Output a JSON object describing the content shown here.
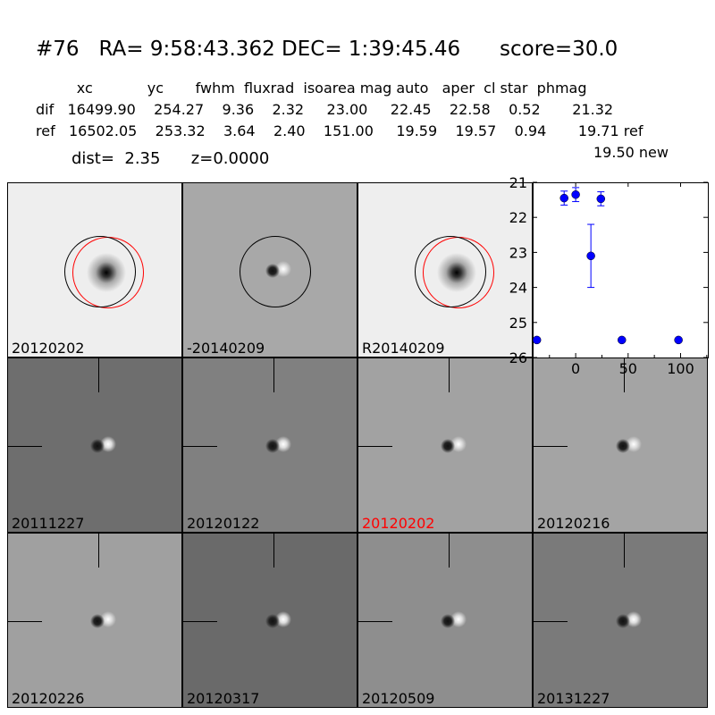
{
  "title": "#76   RA= 9:58:43.362 DEC= 1:39:45.46      score=30.0",
  "table": {
    "header": "         xc            yc       fwhm  fluxrad  isoarea mag auto   aper  cl star  phmag",
    "dif": "dif   16499.90    254.27    9.36    2.32     23.00     22.45    22.58    0.52       21.32",
    "ref": "ref   16502.05    253.32    3.64    2.40    151.00     19.59    19.57    0.94       19.71 ref",
    "new": "19.50 new",
    "dist": "dist=  2.35      z=0.0000"
  },
  "stamps": [
    {
      "label": "20120202",
      "bg": "#eeeeee",
      "label_color": "#000000"
    },
    {
      "label": "-20140209",
      "bg": "#a8a8a8",
      "label_color": "#000000"
    },
    {
      "label": "R20140209",
      "bg": "#eeeeee",
      "label_color": "#000000"
    },
    {
      "label": "20111227",
      "bg": "#6e6e6e",
      "label_color": "#000000"
    },
    {
      "label": "20120122",
      "bg": "#808080",
      "label_color": "#000000"
    },
    {
      "label": "20120202",
      "bg": "#a2a2a2",
      "label_color": "#ff0000"
    },
    {
      "label": "20120216",
      "bg": "#a4a4a4",
      "label_color": "#000000"
    },
    {
      "label": "20120226",
      "bg": "#a0a0a0",
      "label_color": "#000000"
    },
    {
      "label": "20120317",
      "bg": "#6a6a6a",
      "label_color": "#000000"
    },
    {
      "label": "20120509",
      "bg": "#8e8e8e",
      "label_color": "#000000"
    },
    {
      "label": "20131227",
      "bg": "#7a7a7a",
      "label_color": "#000000"
    }
  ],
  "chart_data": {
    "type": "scatter",
    "xlim": [
      -41,
      126
    ],
    "ylim": [
      26,
      21
    ],
    "xticks": [
      "0",
      "50",
      "100"
    ],
    "yticks": [
      "21",
      "22",
      "23",
      "24",
      "25",
      "26"
    ],
    "color": "#0000ff",
    "points": [
      {
        "x": -37,
        "y": 25.5,
        "err": 0.05
      },
      {
        "x": -11,
        "y": 21.45,
        "err": 0.2
      },
      {
        "x": 0,
        "y": 21.35,
        "err": 0.2
      },
      {
        "x": 14.5,
        "y": 23.1,
        "err": 0.9
      },
      {
        "x": 24,
        "y": 21.47,
        "err": 0.2
      },
      {
        "x": 44,
        "y": 25.5,
        "err": 0.05
      },
      {
        "x": 98,
        "y": 25.5,
        "err": 0.05
      }
    ]
  }
}
